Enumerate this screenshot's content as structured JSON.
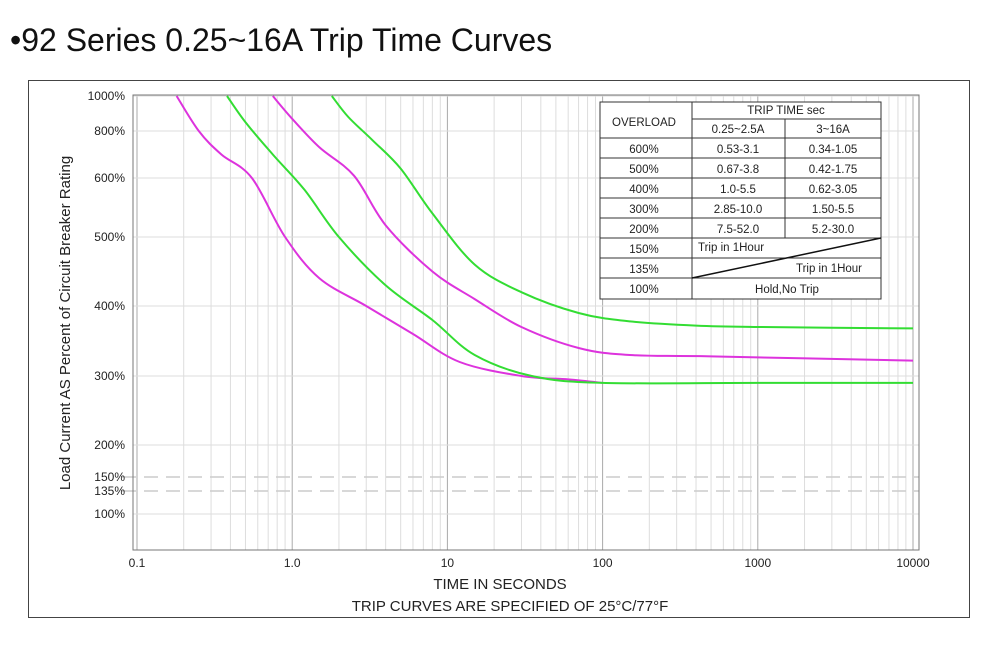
{
  "title": "•92 Series 0.25~16A Trip Time Curves",
  "chart_data": {
    "type": "line",
    "xscale": "log",
    "xlim": [
      0.1,
      10000
    ],
    "xticks": [
      "0.1",
      "1.0",
      "10",
      "100",
      "1000",
      "10000"
    ],
    "ylabel": "Load Current AS Percent of Circuit Breaker Rating",
    "yticks": [
      "1000%",
      "800%",
      "600%",
      "500%",
      "400%",
      "300%",
      "200%",
      "150%",
      "135%",
      "100%"
    ],
    "reference_lines": [
      "150%",
      "135%"
    ],
    "xlabel": "TIME IN SECONDS",
    "note": "TRIP CURVES ARE SPECIFIED OF 25°C/77°F",
    "grid": true,
    "series": [
      {
        "color": "#dd33dd",
        "points": [
          [
            0.18,
            1000
          ],
          [
            0.25,
            800
          ],
          [
            0.35,
            700
          ],
          [
            0.55,
            600
          ],
          [
            0.9,
            500
          ],
          [
            1.5,
            440
          ],
          [
            3,
            400
          ],
          [
            6,
            360
          ],
          [
            12,
            320
          ],
          [
            30,
            300
          ],
          [
            60,
            295
          ],
          [
            100,
            290
          ]
        ]
      },
      {
        "color": "#33dd33",
        "points": [
          [
            0.38,
            1000
          ],
          [
            0.5,
            850
          ],
          [
            0.75,
            700
          ],
          [
            1.2,
            580
          ],
          [
            2,
            500
          ],
          [
            4,
            430
          ],
          [
            8,
            380
          ],
          [
            15,
            330
          ],
          [
            35,
            300
          ],
          [
            100,
            290
          ],
          [
            1000,
            290
          ],
          [
            10000,
            290
          ]
        ]
      },
      {
        "color": "#dd33dd",
        "points": [
          [
            0.75,
            1000
          ],
          [
            1.0,
            870
          ],
          [
            1.5,
            730
          ],
          [
            2.5,
            610
          ],
          [
            4,
            520
          ],
          [
            8,
            450
          ],
          [
            15,
            410
          ],
          [
            30,
            370
          ],
          [
            70,
            340
          ],
          [
            150,
            330
          ],
          [
            500,
            328
          ],
          [
            10000,
            322
          ]
        ]
      },
      {
        "color": "#33dd33",
        "points": [
          [
            1.8,
            1000
          ],
          [
            2.3,
            880
          ],
          [
            3.3,
            760
          ],
          [
            5,
            640
          ],
          [
            8,
            540
          ],
          [
            15,
            460
          ],
          [
            30,
            420
          ],
          [
            70,
            390
          ],
          [
            150,
            378
          ],
          [
            400,
            372
          ],
          [
            1000,
            370
          ],
          [
            10000,
            368
          ]
        ]
      }
    ],
    "table": {
      "col_overload": "OVERLOAD",
      "col_trip": "TRIP TIME sec",
      "sub_a": "0.25~2.5A",
      "sub_b": "3~16A",
      "rows": [
        [
          "600%",
          "0.53-3.1",
          "0.34-1.05"
        ],
        [
          "500%",
          "0.67-3.8",
          "0.42-1.75"
        ],
        [
          "400%",
          "1.0-5.5",
          "0.62-3.05"
        ],
        [
          "300%",
          "2.85-10.0",
          "1.50-5.5"
        ],
        [
          "200%",
          "7.5-52.0",
          "5.2-30.0"
        ]
      ],
      "row150": "150%",
      "row135": "135%",
      "row100": "100%",
      "trip1": "Trip in 1Hour",
      "trip2": "Trip in 1Hour",
      "hold": "Hold,No Trip"
    }
  }
}
